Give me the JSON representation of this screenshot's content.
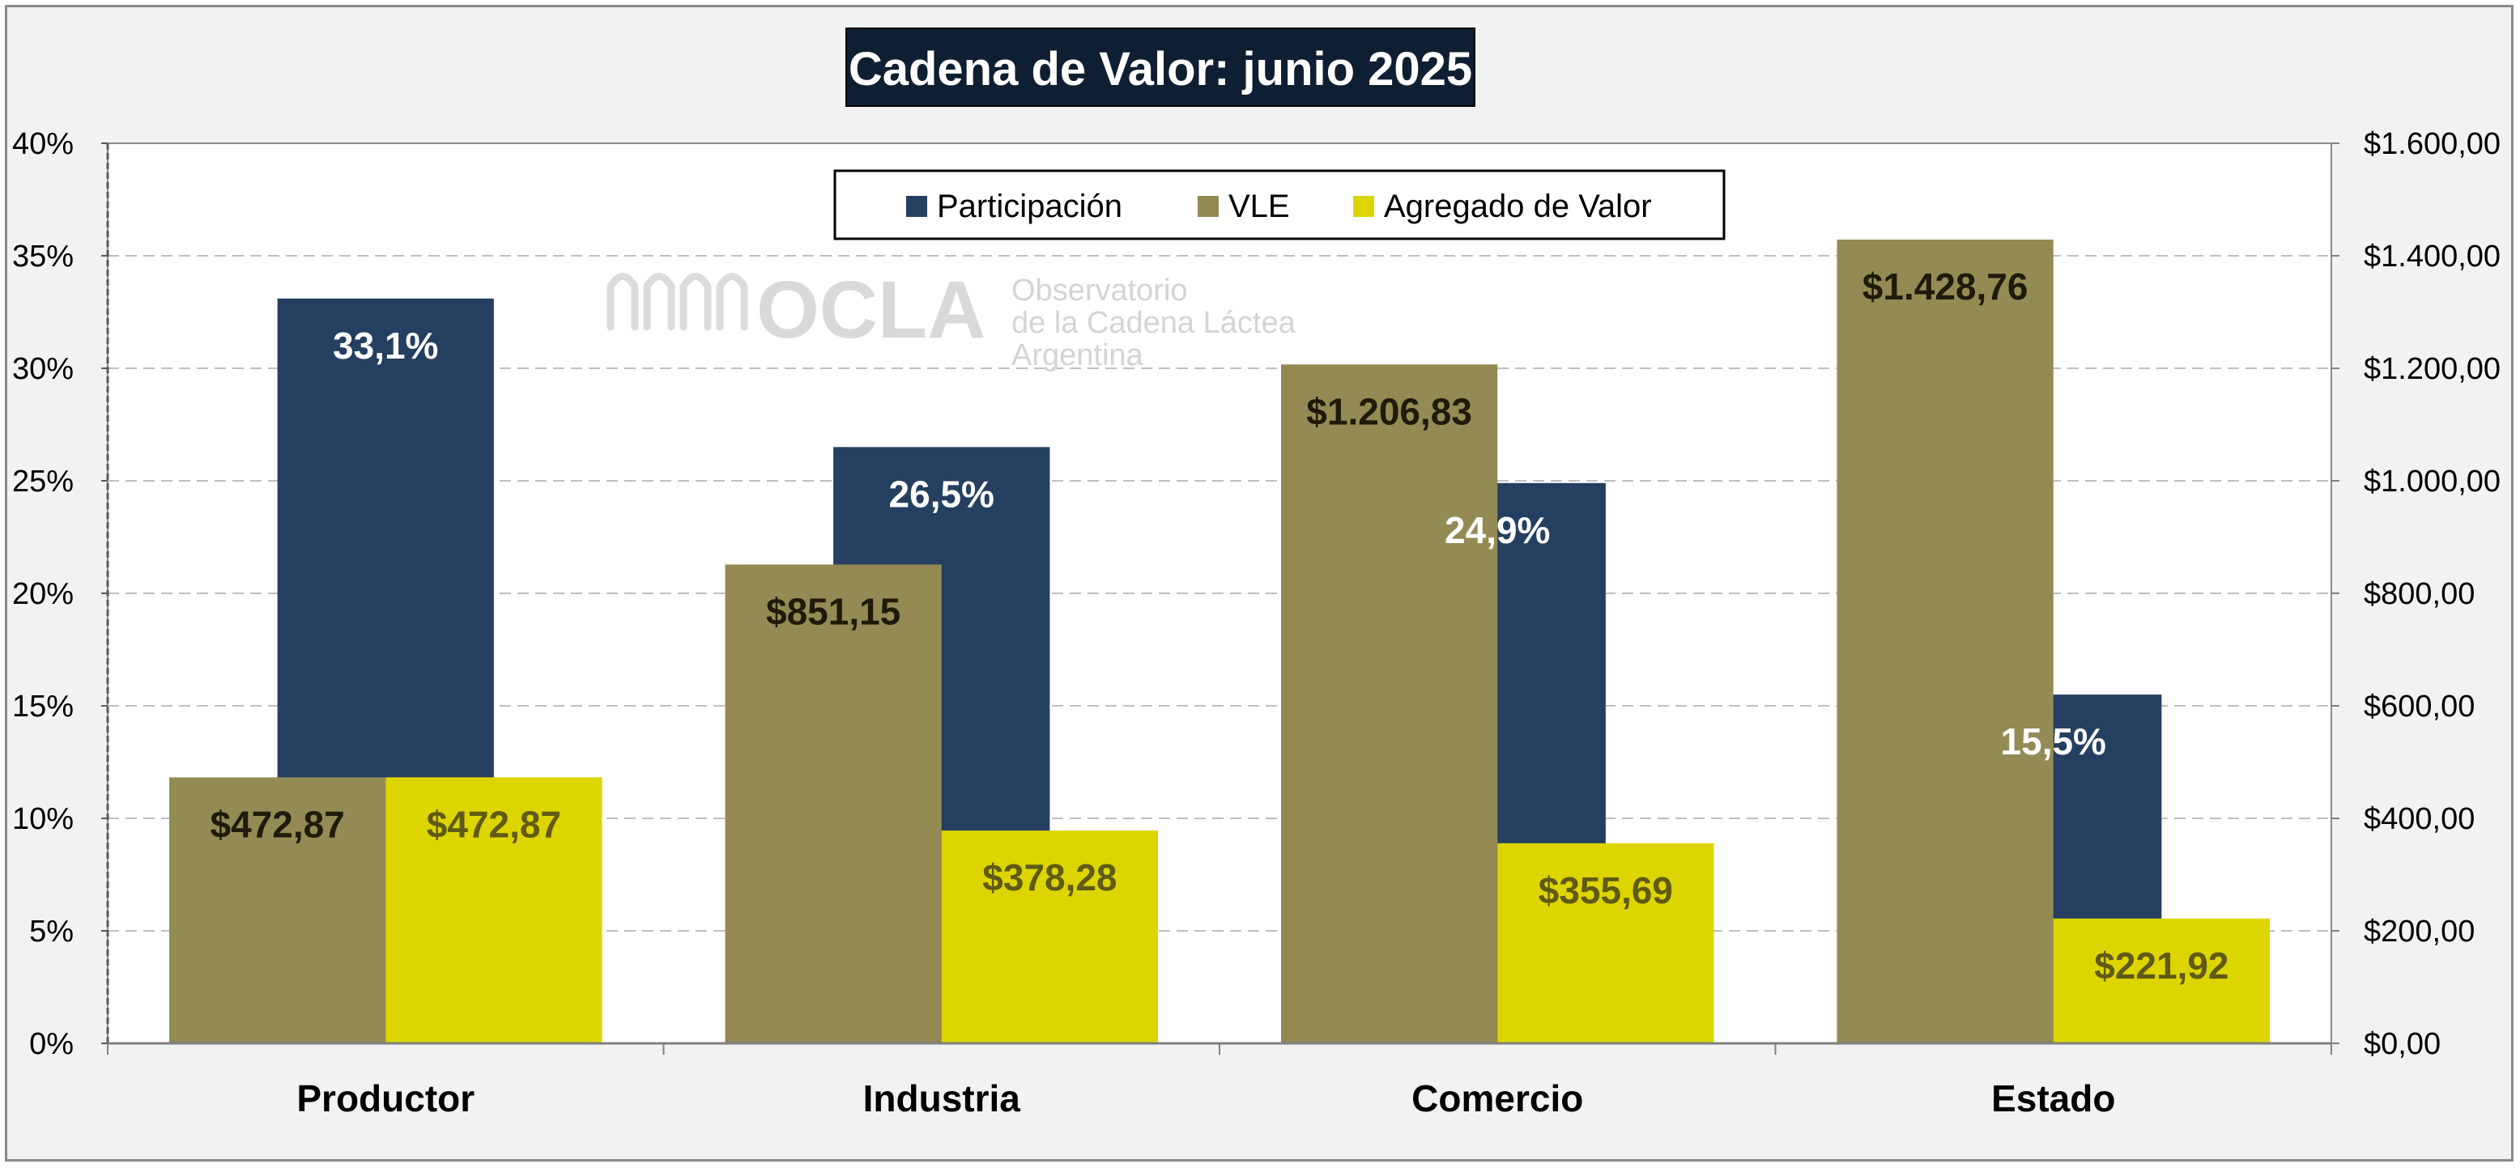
{
  "chart_data": {
    "type": "bar",
    "title": "Cadena de Valor: junio 2025",
    "categories": [
      "Productor",
      "Industria",
      "Comercio",
      "Estado"
    ],
    "series": [
      {
        "name": "Participación",
        "axis": "left",
        "color": "#243f60",
        "label_color": "#ffffff",
        "values": [
          33.1,
          26.5,
          24.9,
          15.5
        ],
        "labels": [
          "33,1%",
          "26,5%",
          "24,9%",
          "15,5%"
        ]
      },
      {
        "name": "VLE",
        "axis": "right",
        "color": "#948a54",
        "label_color": "#1f1a0a",
        "values": [
          472.87,
          851.15,
          1206.83,
          1428.76
        ],
        "labels": [
          "$472,87",
          "$851,15",
          "$1.206,83",
          "$1.428,76"
        ]
      },
      {
        "name": "Agregado de Valor",
        "axis": "right",
        "color": "#dcd500",
        "label_color": "#5f5a14",
        "values": [
          472.87,
          378.28,
          355.69,
          221.92
        ],
        "labels": [
          "$472,87",
          "$378,28",
          "$355,69",
          "$221,92"
        ]
      }
    ],
    "y_left": {
      "range": [
        0,
        40
      ],
      "ticks": [
        0,
        5,
        10,
        15,
        20,
        25,
        30,
        35,
        40
      ],
      "tick_labels": [
        "0%",
        "5%",
        "10%",
        "15%",
        "20%",
        "25%",
        "30%",
        "35%",
        "40%"
      ]
    },
    "y_right": {
      "range": [
        0,
        1600
      ],
      "ticks": [
        0,
        200,
        400,
        600,
        800,
        1000,
        1200,
        1400,
        1600
      ],
      "tick_labels": [
        "$0,00",
        "$200,00",
        "$400,00",
        "$600,00",
        "$800,00",
        "$1.000,00",
        "$1.200,00",
        "$1.400,00",
        "$1.600,00"
      ]
    },
    "grid": true,
    "legend_position": "top-center"
  },
  "watermark": {
    "logo_text": "OCLA",
    "lines": [
      "Observatorio",
      "de la Cadena Láctea",
      "Argentina"
    ]
  },
  "colors": {
    "title_background": "#0f1f33",
    "frame_background": "#f2f2f2",
    "plot_background": "#ffffff",
    "grid": "#bfbfbf"
  }
}
